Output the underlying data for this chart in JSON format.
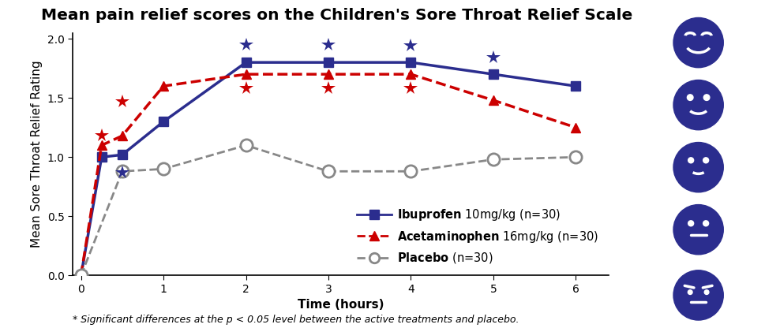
{
  "title": "Mean pain relief scores on the Children's Sore Throat Relief Scale",
  "xlabel": "Time (hours)",
  "ylabel": "Mean Sore Throat Relief Rating",
  "footnote": "* Significant differences at the p < 0.05 level between the active treatments and placebo.",
  "ibuprofen": {
    "label": "Ibuprofen",
    "dose": "10mg/kg (n=30)",
    "x": [
      0,
      0.25,
      0.5,
      1,
      2,
      3,
      4,
      5,
      6
    ],
    "y": [
      0,
      1.0,
      1.02,
      1.3,
      1.8,
      1.8,
      1.8,
      1.7,
      1.6
    ],
    "color": "#2B2D8E",
    "linestyle": "-",
    "marker": "s",
    "markersize": 9,
    "linewidth": 2.5,
    "star_x": [
      0.5,
      2,
      3,
      4,
      5
    ],
    "star_y": [
      0.87,
      1.95,
      1.95,
      1.94,
      1.84
    ]
  },
  "acetaminophen": {
    "label": "Acetaminophen",
    "dose": "16mg/kg (n=30)",
    "x": [
      0,
      0.25,
      0.5,
      1,
      2,
      3,
      4,
      5,
      6
    ],
    "y": [
      0,
      1.1,
      1.18,
      1.6,
      1.7,
      1.7,
      1.7,
      1.48,
      1.25
    ],
    "color": "#CC0000",
    "linestyle": "--",
    "marker": "^",
    "markersize": 9,
    "linewidth": 2.5,
    "star_x": [
      0.25,
      0.5,
      2,
      3,
      4
    ],
    "star_y": [
      1.18,
      1.47,
      1.58,
      1.58,
      1.58
    ]
  },
  "placebo": {
    "label": "Placebo",
    "dose": "(n=30)",
    "x": [
      0,
      0.5,
      1,
      2,
      3,
      4,
      5,
      6
    ],
    "y": [
      0,
      0.88,
      0.9,
      1.1,
      0.88,
      0.88,
      0.98,
      1.0
    ],
    "color": "#888888",
    "linestyle": "--",
    "marker": "o",
    "markersize": 11,
    "linewidth": 2,
    "markerfacecolor": "white",
    "markeredgewidth": 2
  },
  "ylim": [
    0,
    2.05
  ],
  "xlim": [
    -0.1,
    6.4
  ],
  "yticks": [
    0,
    0.5,
    1.0,
    1.5,
    2.0
  ],
  "xticks": [
    0,
    1,
    2,
    3,
    4,
    5,
    6
  ],
  "background_color": "#ffffff",
  "title_fontsize": 14.5,
  "axis_label_fontsize": 11,
  "tick_fontsize": 10,
  "legend_fontsize": 10.5,
  "face_color": "#2B2D8E"
}
